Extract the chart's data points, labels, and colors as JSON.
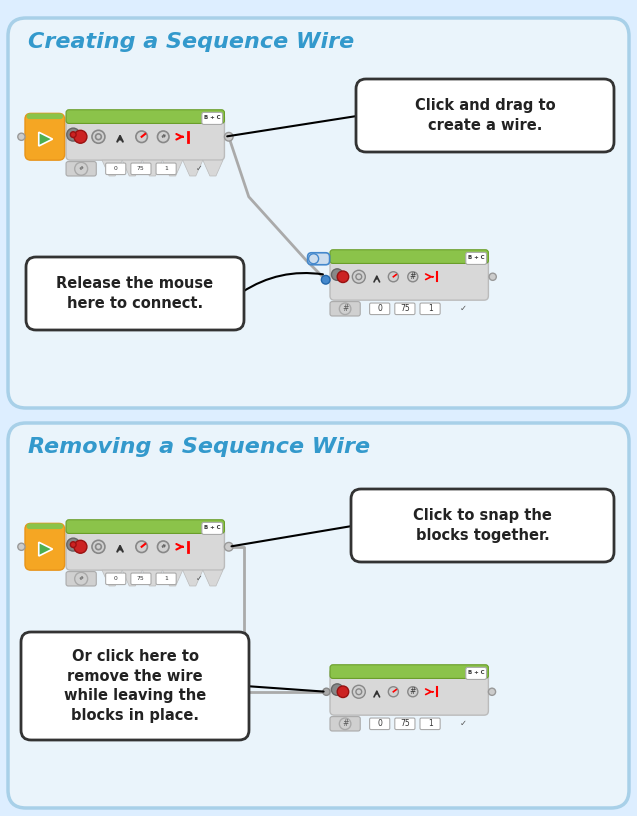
{
  "bg_color": "#ddeeff",
  "panel1_bg": "#eaf4fb",
  "panel2_bg": "#eaf4fb",
  "panel_border": "#a8d0e8",
  "title1": "Creating a Sequence Wire",
  "title2": "Removing a Sequence Wire",
  "title_color": "#3399cc",
  "callout1_text": "Click and drag to\ncreate a wire.",
  "callout2_text": "Release the mouse\nhere to connect.",
  "callout3_text": "Click to snap the\nblocks together.",
  "callout4_text": "Or click here to\nremove the wire\nwhile leaving the\nblocks in place.",
  "block_green_top": "#8bc34a",
  "block_green_dark": "#6a9e2a",
  "block_body": "#e8e8e8",
  "block_orange": "#f5a623",
  "block_orange2": "#e8941a",
  "play_green": "#4caf50",
  "text_dark": "#222222",
  "callout_bg": "#ffffff",
  "callout_border": "#333333",
  "wire_color": "#888888",
  "connector_blue": "#4488cc",
  "connector_gray": "#aaaaaa"
}
